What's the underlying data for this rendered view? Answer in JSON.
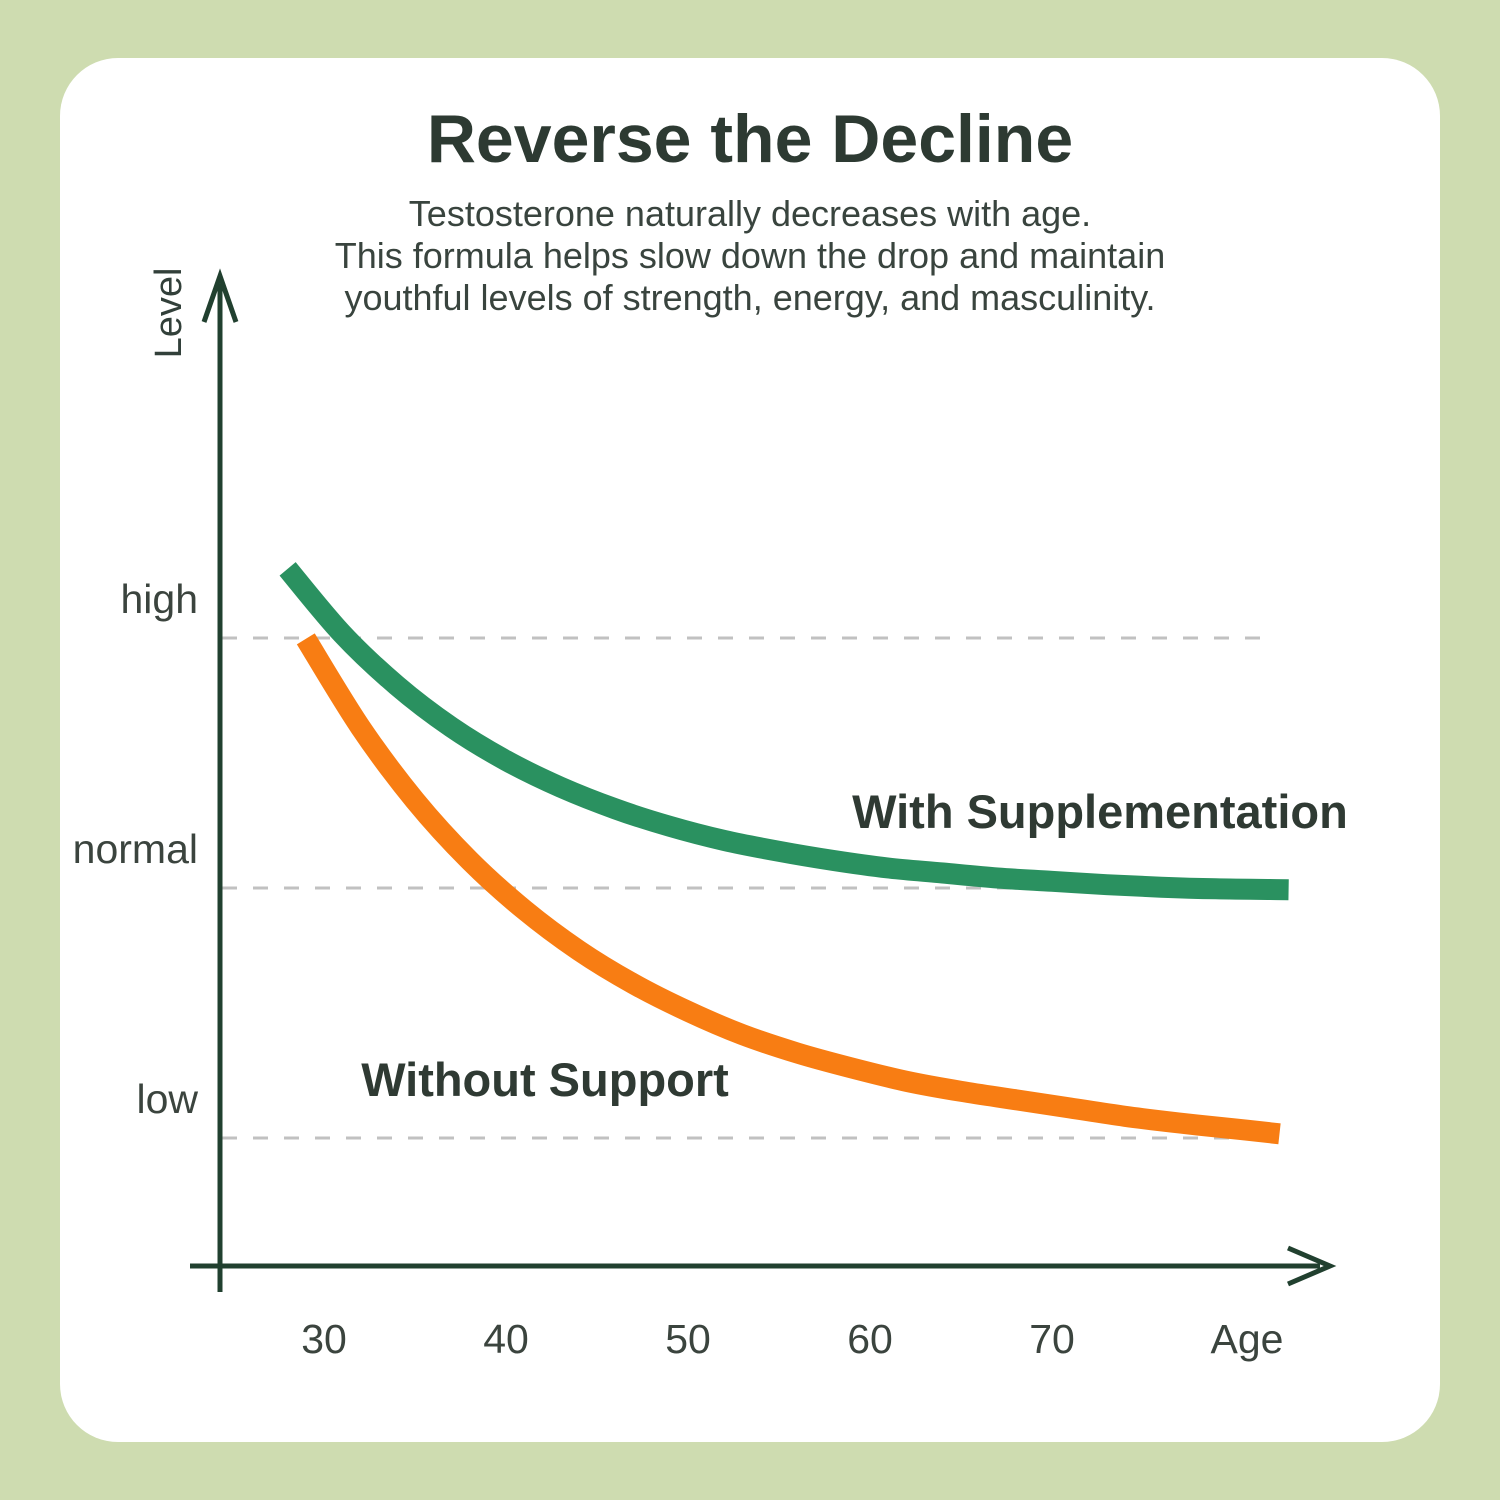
{
  "page": {
    "title": "Reverse the Decline",
    "subtitle_lines": [
      "Testosterone naturally decreases with age.",
      "This formula helps slow down the drop and maintain",
      "youthful levels of strength, energy, and masculinity."
    ]
  },
  "colors": {
    "background": "#cedcb0",
    "card": "#ffffff",
    "axis": "#21402f",
    "gridline": "#c1c1c1",
    "title_text": "#2d3a32",
    "supplementation_green": "#2a9160",
    "without_support_orange": "#f87d13"
  },
  "chart_data": {
    "type": "line",
    "title": "Reverse the Decline",
    "xlabel": "Age",
    "ylabel": "Level",
    "x_ticks": [
      30,
      40,
      50,
      60,
      70
    ],
    "x_range": [
      24,
      85
    ],
    "y_range": [
      0,
      100
    ],
    "y_tick_labels": [
      "high",
      "normal",
      "low"
    ],
    "y_tick_levels": [
      80,
      50,
      20
    ],
    "grid": "dashed horizontal gridlines at high / normal / low",
    "legend_position": "inline labels beside curves",
    "series": [
      {
        "name": "With Supplementation",
        "color": "#2a9160",
        "points": [
          [
            28,
            88.3
          ],
          [
            31,
            80.5
          ],
          [
            34,
            74.3
          ],
          [
            37,
            69.3
          ],
          [
            40,
            65.3
          ],
          [
            43,
            62.1
          ],
          [
            46,
            59.5
          ],
          [
            49,
            57.4
          ],
          [
            52,
            55.7
          ],
          [
            55,
            54.4
          ],
          [
            58,
            53.3
          ],
          [
            61,
            52.4
          ],
          [
            64,
            51.8
          ],
          [
            67,
            51.2
          ],
          [
            70,
            50.8
          ],
          [
            73,
            50.4
          ],
          [
            76,
            50.1
          ],
          [
            79,
            49.9
          ],
          [
            83,
            49.8
          ]
        ]
      },
      {
        "name": "Without Support",
        "color": "#f87d13",
        "points": [
          [
            29,
            79.9
          ],
          [
            32,
            69.3
          ],
          [
            35,
            60.5
          ],
          [
            38,
            53.3
          ],
          [
            41,
            47.4
          ],
          [
            44,
            42.5
          ],
          [
            47,
            38.5
          ],
          [
            50,
            35.2
          ],
          [
            53,
            32.4
          ],
          [
            56,
            30.2
          ],
          [
            59,
            28.4
          ],
          [
            62,
            26.8
          ],
          [
            65,
            25.6
          ],
          [
            68,
            24.6
          ],
          [
            71,
            23.6
          ],
          [
            74,
            22.6
          ],
          [
            77,
            21.8
          ],
          [
            80,
            21.1
          ],
          [
            82.5,
            20.5
          ]
        ]
      }
    ]
  }
}
